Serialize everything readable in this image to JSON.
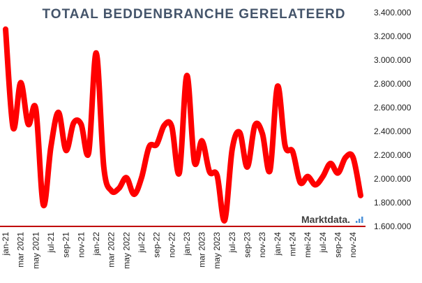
{
  "chart_data": {
    "type": "line",
    "title": "TOTAAL BEDDENBRANCHE  GERELATEERD",
    "ylim": [
      1600000,
      3400000
    ],
    "yticks": [
      "1.600.000",
      "1.800.000",
      "2.000.000",
      "2.200.000",
      "2.400.000",
      "2.600.000",
      "2.800.000",
      "3.000.000",
      "3.200.000",
      "3.400.000"
    ],
    "ytick_values": [
      1600000,
      1800000,
      2000000,
      2200000,
      2400000,
      2600000,
      2800000,
      3000000,
      3200000,
      3400000
    ],
    "x": [
      "jan-21",
      "feb-21",
      "mar 2021",
      "apr-21",
      "may 2021",
      "jun-21",
      "jul-21",
      "aug-21",
      "sep-21",
      "okt-21",
      "nov-21",
      "dec-21",
      "jan-22",
      "feb-22",
      "mar 2022",
      "apr-22",
      "may 2022",
      "jun-22",
      "jul-22",
      "aug-22",
      "sep-22",
      "okt-22",
      "nov-22",
      "dec-22",
      "jan-23",
      "feb-23",
      "mar 2023",
      "apr-23",
      "may 2023",
      "jun-23",
      "jul-23",
      "aug-23",
      "sep-23",
      "okt-23",
      "nov-23",
      "dec-23",
      "jan-24",
      "feb-24",
      "mrt-24",
      "apr-24",
      "mei-24",
      "jun-24",
      "jul-24",
      "aug-24",
      "sep-24",
      "okt-24",
      "nov-24",
      "dec-24"
    ],
    "xtick_labels": [
      "jan-21",
      "mar 2021",
      "may 2021",
      "jul-21",
      "sep-21",
      "nov-21",
      "jan-22",
      "mar 2022",
      "may 2022",
      "jul-22",
      "sep-22",
      "nov-22",
      "jan-23",
      "mar 2023",
      "may 2023",
      "jul-23",
      "sep-23",
      "nov-23",
      "jan-24",
      "mrt-24",
      "mei-24",
      "jul-24",
      "sep-24",
      "nov-24"
    ],
    "series": [
      {
        "values": [
          3260000,
          2430000,
          2810000,
          2460000,
          2590000,
          1780000,
          2270000,
          2560000,
          2240000,
          2470000,
          2460000,
          2220000,
          3060000,
          2100000,
          1900000,
          1920000,
          2010000,
          1870000,
          2010000,
          2270000,
          2290000,
          2450000,
          2440000,
          2050000,
          2870000,
          2140000,
          2320000,
          2060000,
          2030000,
          1650000,
          2250000,
          2390000,
          2100000,
          2450000,
          2380000,
          2070000,
          2780000,
          2280000,
          2230000,
          1970000,
          2020000,
          1950000,
          2020000,
          2130000,
          2050000,
          2180000,
          2180000,
          1860000
        ],
        "color": "#ff0000"
      }
    ],
    "baseline_color": "#c00000",
    "grid": false
  },
  "brand": {
    "name": "Marktdata.",
    "icon": "bar-chart-icon",
    "icon_color": "#4a90d9"
  }
}
